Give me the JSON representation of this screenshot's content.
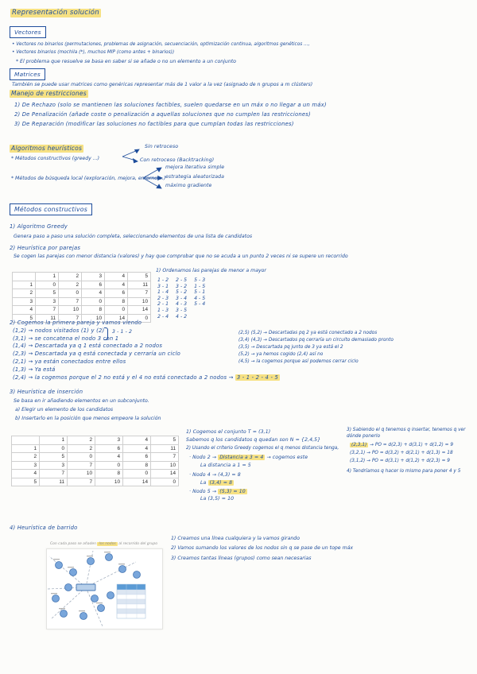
{
  "colors": {
    "ink": "#1e4d9b",
    "highlight": "#f6e183",
    "figure_node": "#79a6db",
    "figure_table_header": "#5b9bd5"
  },
  "page": {
    "title": "Representación solución"
  },
  "vectores": {
    "box_label": "Vectores",
    "line1": "• Vectores no binarios (permutaciones, problemas de asignación, secuenciación, optimización continua, algoritmos genéticos ...,",
    "line2": "• Vectores binarios (mochila (*), muchos MIP (como antes + binarios))",
    "note": "* El problema que resuelve se basa en saber si se añade o no un elemento a un conjunto"
  },
  "matrices": {
    "box_label": "Matrices",
    "line": "También se puede usar matrices como genéricas representar más de 1 valor a la vez (asignado de n grupos a m clústers)"
  },
  "restricciones": {
    "title": "Manejo de restricciones",
    "items": [
      "1) De Rechazo (solo se mantienen las soluciones factibles, suelen quedarse en un máx o no llegar a un máx)",
      "2) De Penalización (añade coste o penalización a aquellas soluciones que no cumplen las restricciones)",
      "3) De Reparación (modificar las soluciones no factibles para que cumplan todas las restricciones)"
    ]
  },
  "heuristicos": {
    "title": "Algoritmos heurísticos",
    "m1": "* Métodos constructivos (greedy ...)",
    "m1_branches": [
      "Sin retroceso",
      "Con retroceso (Backtracking)"
    ],
    "m2": "* Métodos de búsqueda local (exploración, mejora, entorno ...)",
    "m2_branches": [
      "mejora iterativa simple",
      "estrategia aleatorizada",
      "máximo gradiente"
    ]
  },
  "constructivos": {
    "box_label": "Métodos constructivos",
    "greedy_title": "1) Algoritmo Greedy",
    "greedy_desc": "Genera paso a paso una solución completa, seleccionando elementos de una lista de candidatos",
    "parejas_title": "2) Heurística por parejas",
    "parejas_desc": "Se cogen las parejas con menor distancia (valores) y hay que comprobar que no se acuda a un punto 2 veces ni se supere un recorrido"
  },
  "matrix_table": {
    "header": [
      "",
      "1",
      "2",
      "3",
      "4",
      "5"
    ],
    "rows": [
      [
        "1",
        "0",
        "2",
        "6",
        "4",
        "11"
      ],
      [
        "2",
        "5",
        "0",
        "4",
        "6",
        "7"
      ],
      [
        "3",
        "3",
        "7",
        "0",
        "8",
        "10"
      ],
      [
        "4",
        "7",
        "10",
        "8",
        "0",
        "14"
      ],
      [
        "5",
        "11",
        "7",
        "10",
        "14",
        "0"
      ]
    ]
  },
  "ordenar": {
    "title": "1) Ordenamos las parejas de menor a mayor",
    "columns": [
      [
        "1 - 2",
        "3 - 1",
        "1 - 4",
        "2 - 3",
        "2 - 1",
        "1 - 3",
        "2 - 4"
      ],
      [
        "2 - 5",
        "3 - 2",
        "5 - 2",
        "3 - 4",
        "4 - 3",
        "3 - 5",
        "4 - 2"
      ],
      [
        "5 - 3",
        "1 - 5",
        "5 - 1",
        "4 - 5",
        "5 - 4"
      ]
    ]
  },
  "paso2": {
    "title": "2) Cogemos la primera pareja y vamos viendo",
    "lines": [
      "(1,2) → nodos visitados (1) y (2)",
      "(3,1) → se concatena el nodo 3 con 1",
      "(1,4) → Descartada ya q 1 está conectado a 2 nodos",
      "(2,3) → Descartada ya q está conectada y cerraría un ciclo",
      "(2,1) → ya están conectados entre ellos",
      "(1,3) → Ya está"
    ],
    "bracket_label": "3 - 1 - 2",
    "last_line": "(2,4) → la cogemos porque el 2 no está y el 4 no está conectado a 2 nodos  →",
    "result": "3 - 1 - 2 - 4 - 5",
    "right_lines": [
      "(2,5) (5,2) → Descartadas pq 2 ya está conectado a 2 nodos",
      "(3,4) (4,3) → Descartados pq cerraría un circuito demasiado pronto",
      "(3,5) → Descartada pq junto de 3 ya está el 2",
      "(5,2) → ya hemos cogido (2,4) así no",
      "(4,5) → la cogemos porque así podemos cerrar ciclo"
    ]
  },
  "insercion": {
    "title": "3) Heurística de inserción",
    "desc": "Se basa en ir añadiendo elementos en un subconjunto.",
    "step_a": "a) Elegir un elemento de los candidatos",
    "step_b": "b) Insertarlo en la posición que menos empeore la solución",
    "t1": "1) Cogemos el conjunto  T = (3,1)",
    "t2": "Sabemos q los candidatos q quedan son  N = {2,4,5}",
    "t3": "2) Usando el criterio Greedy cogemos el q menos distancia tenga,",
    "nodo2_pre": "· Nodo 2  → ",
    "nodo2_hl": "Distancia a 3 = 4",
    "nodo2_post": " → cogemos este",
    "nodo2_sub": "La distancia a 1 = 5",
    "nodo4_line": "· Nodo 4  →  (4,3) = 8",
    "nodo4_sub_pre": "La ",
    "nodo4_sub_hl": "(3,4) = 8",
    "nodo5_pre": "· Nodo 5  → ",
    "nodo5_hl": "(5,3) = 10",
    "nodo5_sub": "La (3,5) = 10",
    "where_title": "3) Sabiendo el q tenemos q insertar, tenemos q ver dónde ponerlo",
    "opt1_hl": "(2,3,1)",
    "opt1_rest": " → PO = d(2,3) + d(3,1) + d(1,2) = 9",
    "opt2": "(3,2,1) → PO = d(3,2) + d(2,1) + d(1,3) = 18",
    "opt3": "(3,1,2) → PO = d(3,1) + d(1,2) + d(2,3) = 9",
    "next": "4) Tendríamos q hacer lo mismo para poner 4 y 5"
  },
  "barrido": {
    "title": "4) Heurística de barrido",
    "steps": [
      "1) Creamos una línea cualquiera y la vamos girando",
      "2) Vamos sumando los valores de los nodos sin q se pase de un tope máx",
      "3) Creamos tantas líneas (grupos) como sean necesarias"
    ],
    "caption_pre": "Con cada paso se añaden ",
    "caption_hl": "los nodos",
    "caption_post": " al recorrido del grupo"
  }
}
